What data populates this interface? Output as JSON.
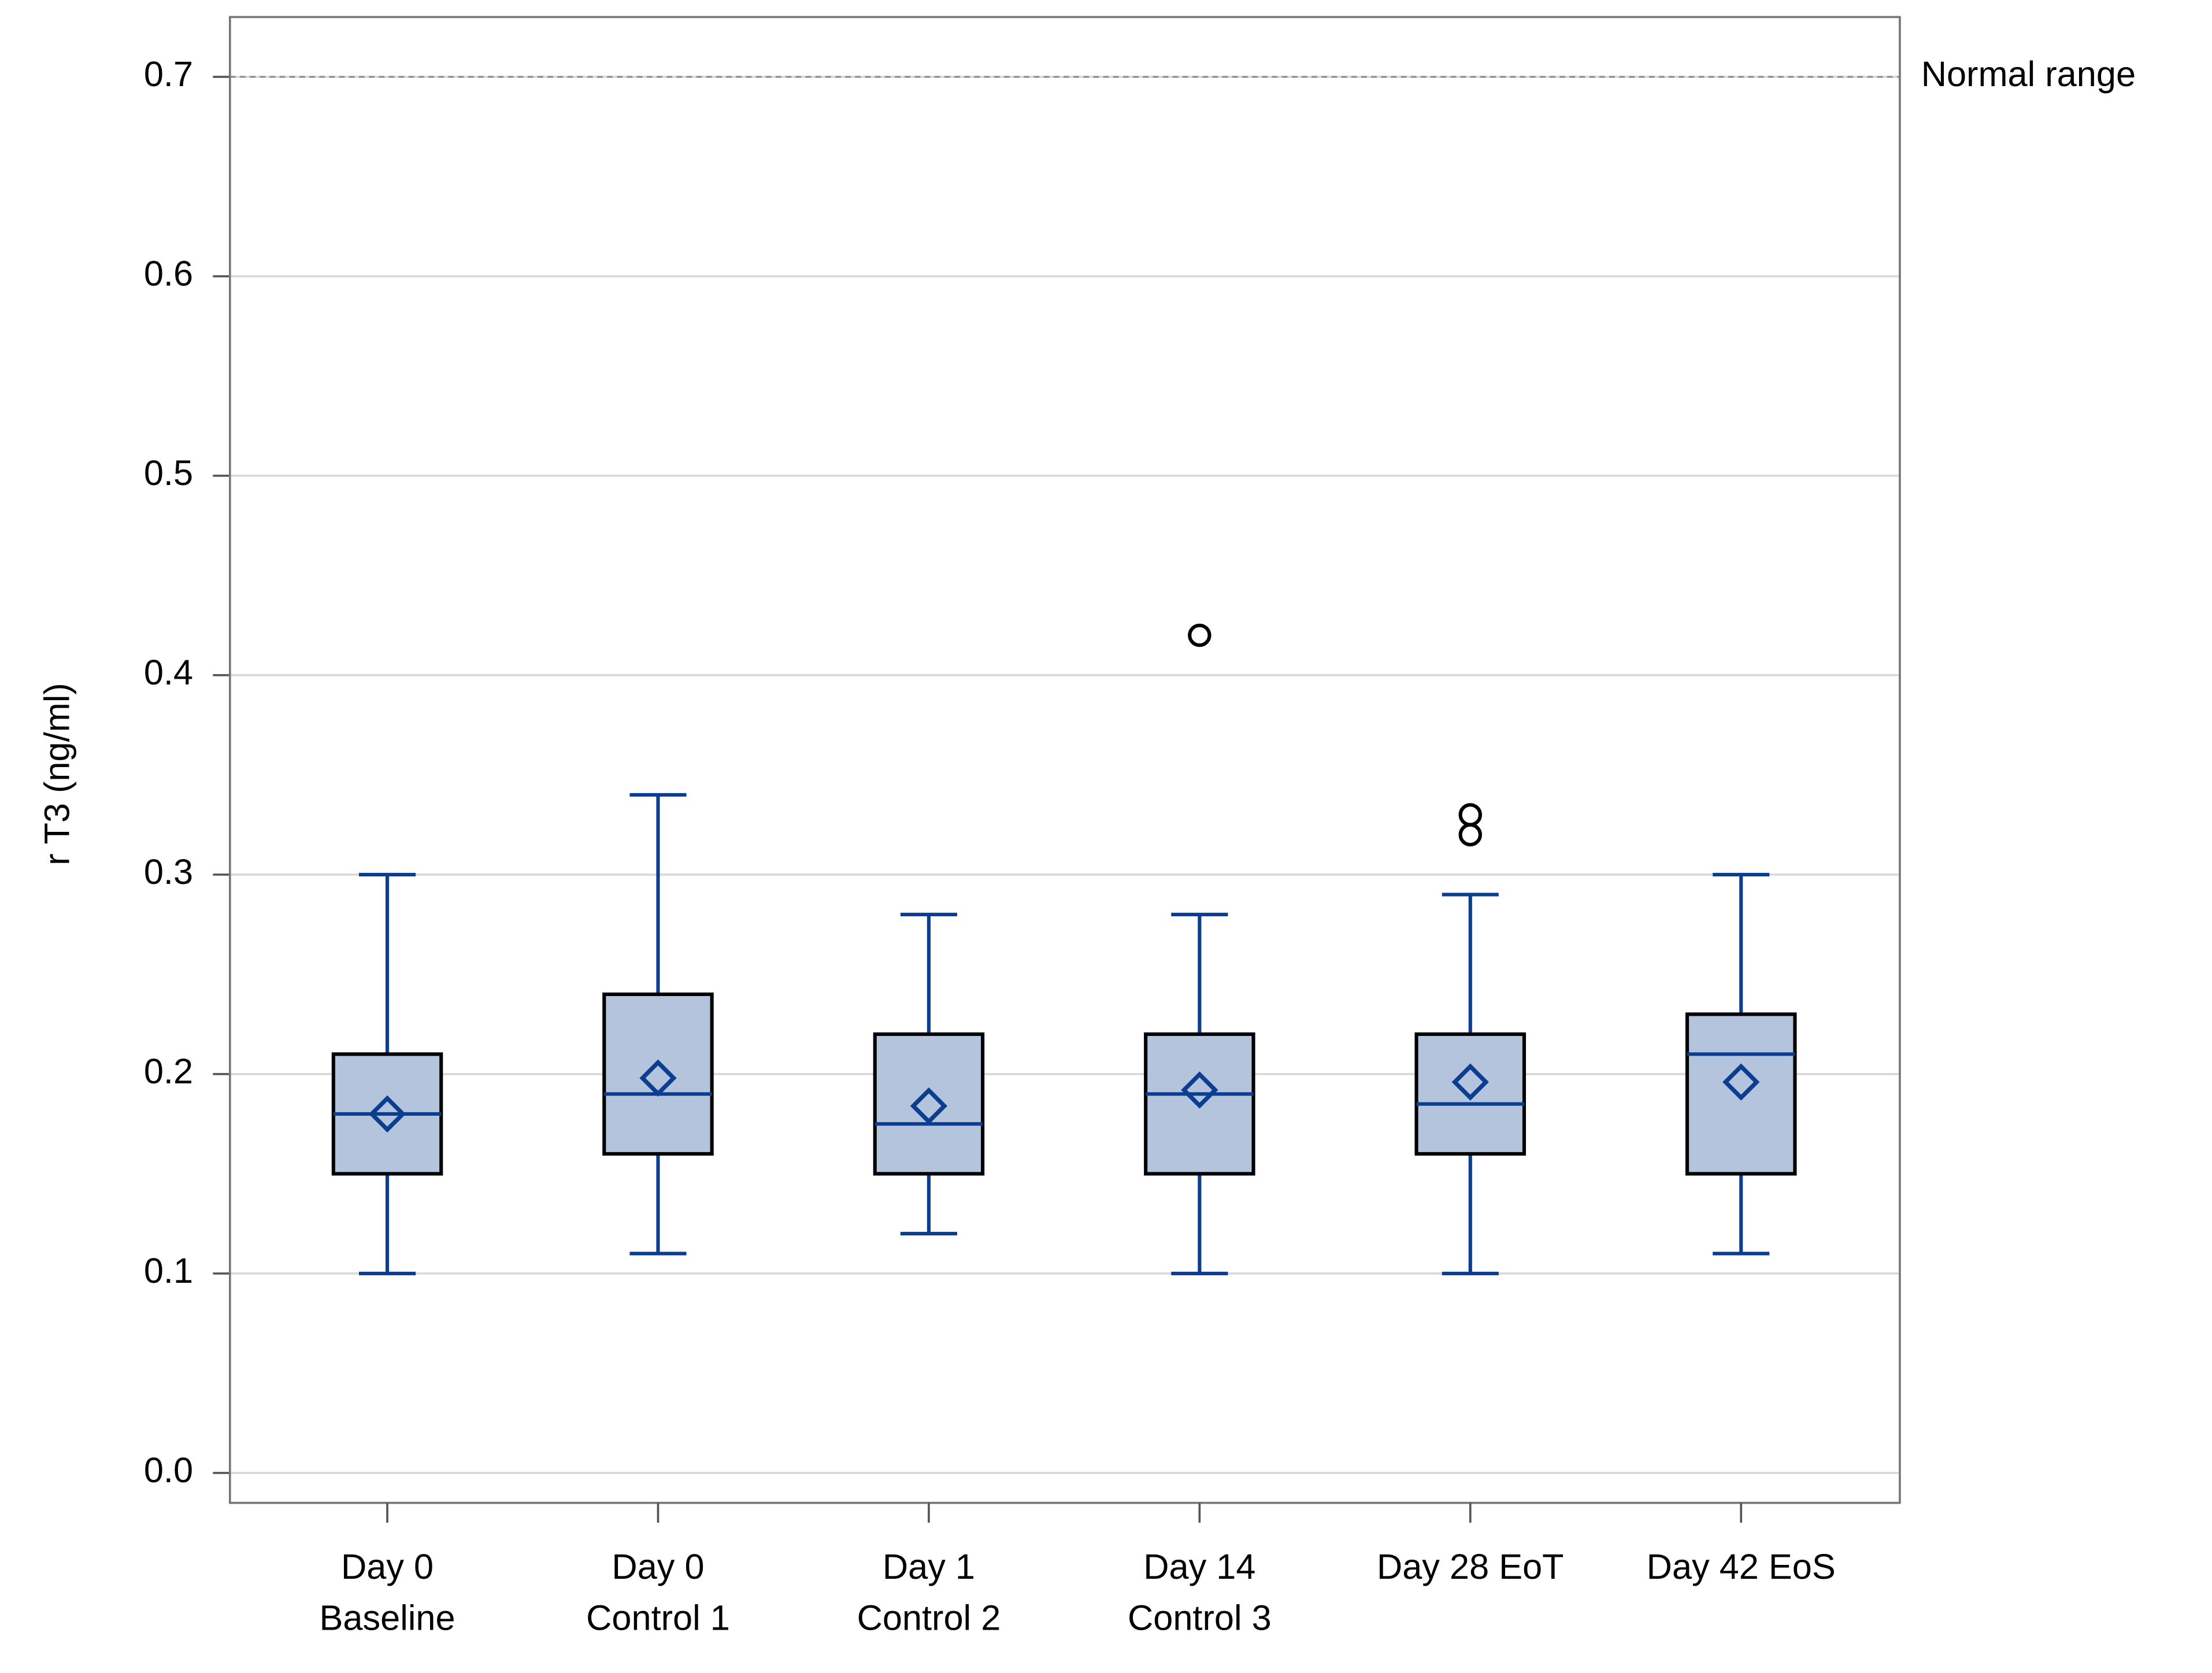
{
  "chart_data": {
    "type": "box",
    "y_label": "r T3 (ng/ml)",
    "categories": [
      [
        "Day 0",
        "Baseline"
      ],
      [
        "Day 0",
        "Control 1"
      ],
      [
        "Day 1",
        "Control 2"
      ],
      [
        "Day 14",
        "Control 3"
      ],
      [
        "Day 28 EoT"
      ],
      [
        "Day 42 EoS"
      ]
    ],
    "boxes": [
      {
        "min": 0.1,
        "q1": 0.15,
        "median": 0.18,
        "q3": 0.21,
        "max": 0.3,
        "mean": 0.18,
        "outliers": []
      },
      {
        "min": 0.11,
        "q1": 0.16,
        "median": 0.19,
        "q3": 0.24,
        "max": 0.34,
        "mean": 0.198,
        "outliers": []
      },
      {
        "min": 0.12,
        "q1": 0.15,
        "median": 0.175,
        "q3": 0.22,
        "max": 0.28,
        "mean": 0.184,
        "outliers": []
      },
      {
        "min": 0.1,
        "q1": 0.15,
        "median": 0.19,
        "q3": 0.22,
        "max": 0.28,
        "mean": 0.192,
        "outliers": [
          0.42
        ]
      },
      {
        "min": 0.1,
        "q1": 0.16,
        "median": 0.185,
        "q3": 0.22,
        "max": 0.29,
        "mean": 0.196,
        "outliers": [
          0.32,
          0.33
        ]
      },
      {
        "min": 0.11,
        "q1": 0.15,
        "median": 0.21,
        "q3": 0.23,
        "max": 0.3,
        "mean": 0.196,
        "outliers": []
      }
    ],
    "box_color": "#b4c4dc",
    "whisker_color": "#0b3d91",
    "reference_lines": [
      {
        "value": 0.7,
        "label": "Normal range"
      }
    ],
    "ylim": [
      -0.015,
      0.73
    ],
    "yticks": [
      {
        "value": 0,
        "label": "0.0"
      },
      {
        "value": 0.1,
        "label": "0.1"
      },
      {
        "value": 0.2,
        "label": "0.2"
      },
      {
        "value": 0.3,
        "label": "0.3"
      },
      {
        "value": 0.4,
        "label": "0.4"
      },
      {
        "value": 0.5,
        "label": "0.5"
      },
      {
        "value": 0.6,
        "label": "0.6"
      },
      {
        "value": 0.7,
        "label": "0.7"
      }
    ],
    "grid": true
  }
}
